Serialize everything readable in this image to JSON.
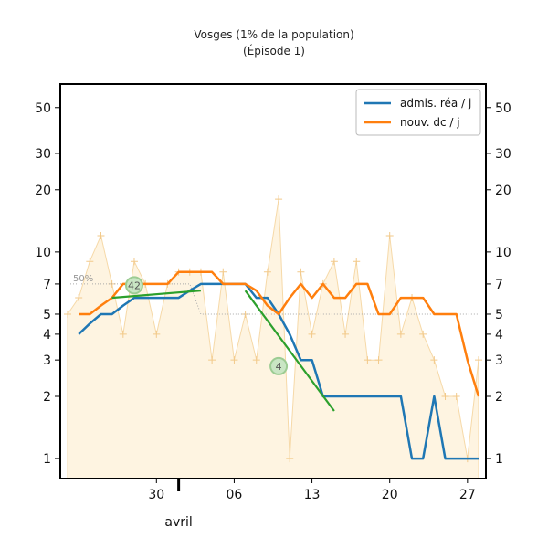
{
  "chart_data": {
    "type": "line",
    "title": "Vosges (1% de la population)",
    "subtitle": "(Épisode 1)",
    "yscale": "log",
    "ylim": [
      0.8,
      65
    ],
    "y_ticks": [
      1,
      2,
      3,
      4,
      5,
      7,
      10,
      20,
      30,
      50
    ],
    "xlim": [
      "2020-03-22",
      "2020-04-28"
    ],
    "x_ticks": [
      {
        "date": "2020-03-30",
        "label": "30"
      },
      {
        "date": "2020-04-06",
        "label": "06"
      },
      {
        "date": "2020-04-13",
        "label": "13"
      },
      {
        "date": "2020-04-20",
        "label": "20"
      },
      {
        "date": "2020-04-27",
        "label": "27"
      }
    ],
    "month_label": {
      "date": "2020-04-01",
      "label": "avril"
    },
    "grid": false,
    "legend_position": "top-right",
    "series": [
      {
        "name": "admis. réa / j",
        "color": "#1f77b4",
        "points": [
          [
            "2020-03-23",
            4
          ],
          [
            "2020-03-24",
            4.5
          ],
          [
            "2020-03-25",
            5
          ],
          [
            "2020-03-26",
            5
          ],
          [
            "2020-03-27",
            5.5
          ],
          [
            "2020-03-28",
            6
          ],
          [
            "2020-03-29",
            6
          ],
          [
            "2020-03-30",
            6
          ],
          [
            "2020-03-31",
            6
          ],
          [
            "2020-04-01",
            6
          ],
          [
            "2020-04-02",
            6.5
          ],
          [
            "2020-04-03",
            7
          ],
          [
            "2020-04-04",
            7
          ],
          [
            "2020-04-05",
            7
          ],
          [
            "2020-04-06",
            7
          ],
          [
            "2020-04-07",
            7
          ],
          [
            "2020-04-08",
            6
          ],
          [
            "2020-04-09",
            6
          ],
          [
            "2020-04-10",
            5
          ],
          [
            "2020-04-11",
            4
          ],
          [
            "2020-04-12",
            3
          ],
          [
            "2020-04-13",
            3
          ],
          [
            "2020-04-14",
            2
          ],
          [
            "2020-04-15",
            2
          ],
          [
            "2020-04-16",
            2
          ],
          [
            "2020-04-17",
            2
          ],
          [
            "2020-04-18",
            2
          ],
          [
            "2020-04-19",
            2
          ],
          [
            "2020-04-20",
            2
          ],
          [
            "2020-04-21",
            2
          ],
          [
            "2020-04-22",
            1
          ],
          [
            "2020-04-23",
            1
          ],
          [
            "2020-04-24",
            2
          ],
          [
            "2020-04-25",
            1
          ],
          [
            "2020-04-26",
            1
          ],
          [
            "2020-04-27",
            1
          ],
          [
            "2020-04-28",
            1
          ]
        ]
      },
      {
        "name": "nouv. dc / j",
        "color": "#ff7f0e",
        "points": [
          [
            "2020-03-23",
            5
          ],
          [
            "2020-03-24",
            5
          ],
          [
            "2020-03-25",
            5.5
          ],
          [
            "2020-03-26",
            6
          ],
          [
            "2020-03-27",
            7
          ],
          [
            "2020-03-28",
            7
          ],
          [
            "2020-03-29",
            7
          ],
          [
            "2020-03-30",
            7
          ],
          [
            "2020-03-31",
            7
          ],
          [
            "2020-04-01",
            8
          ],
          [
            "2020-04-02",
            8
          ],
          [
            "2020-04-03",
            8
          ],
          [
            "2020-04-04",
            8
          ],
          [
            "2020-04-05",
            7
          ],
          [
            "2020-04-06",
            7
          ],
          [
            "2020-04-07",
            7
          ],
          [
            "2020-04-08",
            6.5
          ],
          [
            "2020-04-09",
            5.5
          ],
          [
            "2020-04-10",
            5
          ],
          [
            "2020-04-11",
            6
          ],
          [
            "2020-04-12",
            7
          ],
          [
            "2020-04-13",
            6
          ],
          [
            "2020-04-14",
            7
          ],
          [
            "2020-04-15",
            6
          ],
          [
            "2020-04-16",
            6
          ],
          [
            "2020-04-17",
            7
          ],
          [
            "2020-04-18",
            7
          ],
          [
            "2020-04-19",
            5
          ],
          [
            "2020-04-20",
            5
          ],
          [
            "2020-04-21",
            6
          ],
          [
            "2020-04-22",
            6
          ],
          [
            "2020-04-23",
            6
          ],
          [
            "2020-04-24",
            5
          ],
          [
            "2020-04-25",
            5
          ],
          [
            "2020-04-26",
            5
          ],
          [
            "2020-04-27",
            3
          ],
          [
            "2020-04-28",
            2
          ]
        ]
      }
    ],
    "raw_daily": {
      "color": "#fdebc8",
      "points": [
        [
          "2020-03-22",
          5
        ],
        [
          "2020-03-23",
          6
        ],
        [
          "2020-03-24",
          9
        ],
        [
          "2020-03-25",
          12
        ],
        [
          "2020-03-26",
          7
        ],
        [
          "2020-03-27",
          4
        ],
        [
          "2020-03-28",
          9
        ],
        [
          "2020-03-29",
          7
        ],
        [
          "2020-03-30",
          4
        ],
        [
          "2020-03-31",
          7
        ],
        [
          "2020-04-01",
          8
        ],
        [
          "2020-04-02",
          8
        ],
        [
          "2020-04-03",
          8
        ],
        [
          "2020-04-04",
          3
        ],
        [
          "2020-04-05",
          8
        ],
        [
          "2020-04-06",
          3
        ],
        [
          "2020-04-07",
          5
        ],
        [
          "2020-04-08",
          3
        ],
        [
          "2020-04-09",
          8
        ],
        [
          "2020-04-10",
          18
        ],
        [
          "2020-04-11",
          1
        ],
        [
          "2020-04-12",
          8
        ],
        [
          "2020-04-13",
          4
        ],
        [
          "2020-04-14",
          7
        ],
        [
          "2020-04-15",
          9
        ],
        [
          "2020-04-16",
          4
        ],
        [
          "2020-04-17",
          9
        ],
        [
          "2020-04-18",
          3
        ],
        [
          "2020-04-19",
          3
        ],
        [
          "2020-04-20",
          12
        ],
        [
          "2020-04-21",
          4
        ],
        [
          "2020-04-22",
          6
        ],
        [
          "2020-04-23",
          4
        ],
        [
          "2020-04-24",
          3
        ],
        [
          "2020-04-25",
          2
        ],
        [
          "2020-04-26",
          2
        ],
        [
          "2020-04-27",
          1
        ],
        [
          "2020-04-28",
          3
        ]
      ]
    },
    "trend_lines": [
      {
        "color": "#2ca02c",
        "points": [
          [
            "2020-03-26",
            6
          ],
          [
            "2020-04-03",
            6.5
          ]
        ],
        "badge": "42",
        "badge_at": [
          "2020-03-28",
          6.9
        ]
      },
      {
        "color": "#2ca02c",
        "points": [
          [
            "2020-04-07",
            6.5
          ],
          [
            "2020-04-15",
            1.7
          ]
        ],
        "badge": "4",
        "badge_at": [
          "2020-04-10",
          2.8
        ]
      }
    ],
    "reference_line": {
      "label": "50%",
      "color": "#aaaaaa",
      "points": [
        [
          "2020-03-22",
          7
        ],
        [
          "2020-04-02",
          7
        ],
        [
          "2020-04-03",
          5
        ],
        [
          "2020-04-28",
          5
        ]
      ]
    }
  }
}
